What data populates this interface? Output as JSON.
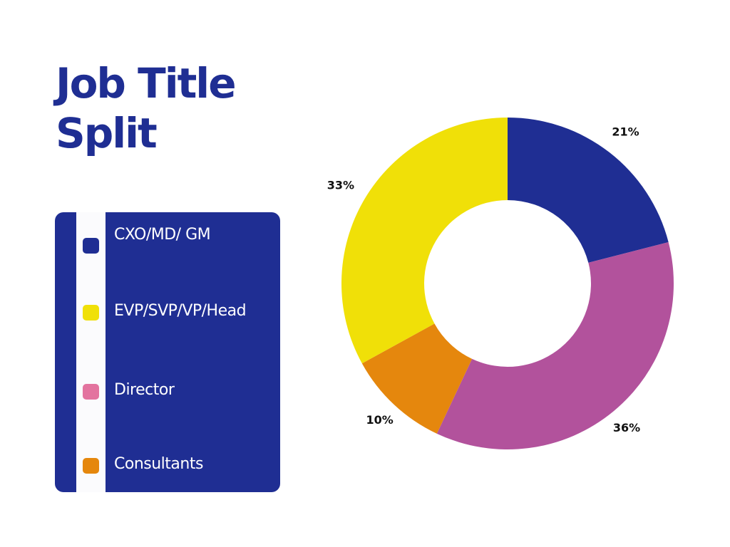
{
  "page": {
    "title": "Job Title\nSplit"
  },
  "colors": {
    "title": "#1f2e93",
    "legend_background": "#1f2e93",
    "legend_strip": "#fbfbfd"
  },
  "legend": {
    "items": [
      {
        "label": "CXO/MD/ GM",
        "color": "#1f2e93"
      },
      {
        "label": "EVP/SVP/VP/Head",
        "color": "#f0e008"
      },
      {
        "label": "Director",
        "color": "#e3739f"
      },
      {
        "label": "Consultants",
        "color": "#e5870d"
      }
    ]
  },
  "chart_data": {
    "type": "pie",
    "style": "donut",
    "title": "Job Title Split",
    "categories": [
      "CXO/MD/ GM",
      "Director",
      "Consultants",
      "EVP/SVP/VP/Head"
    ],
    "values": [
      21,
      36,
      10,
      33
    ],
    "labels": [
      "21%",
      "36%",
      "10%",
      "33%"
    ],
    "colors": [
      "#1f2e93",
      "#b2529c",
      "#e5870d",
      "#f0e008"
    ],
    "start_angle_deg": 0,
    "direction": "clockwise",
    "legend": "left"
  }
}
